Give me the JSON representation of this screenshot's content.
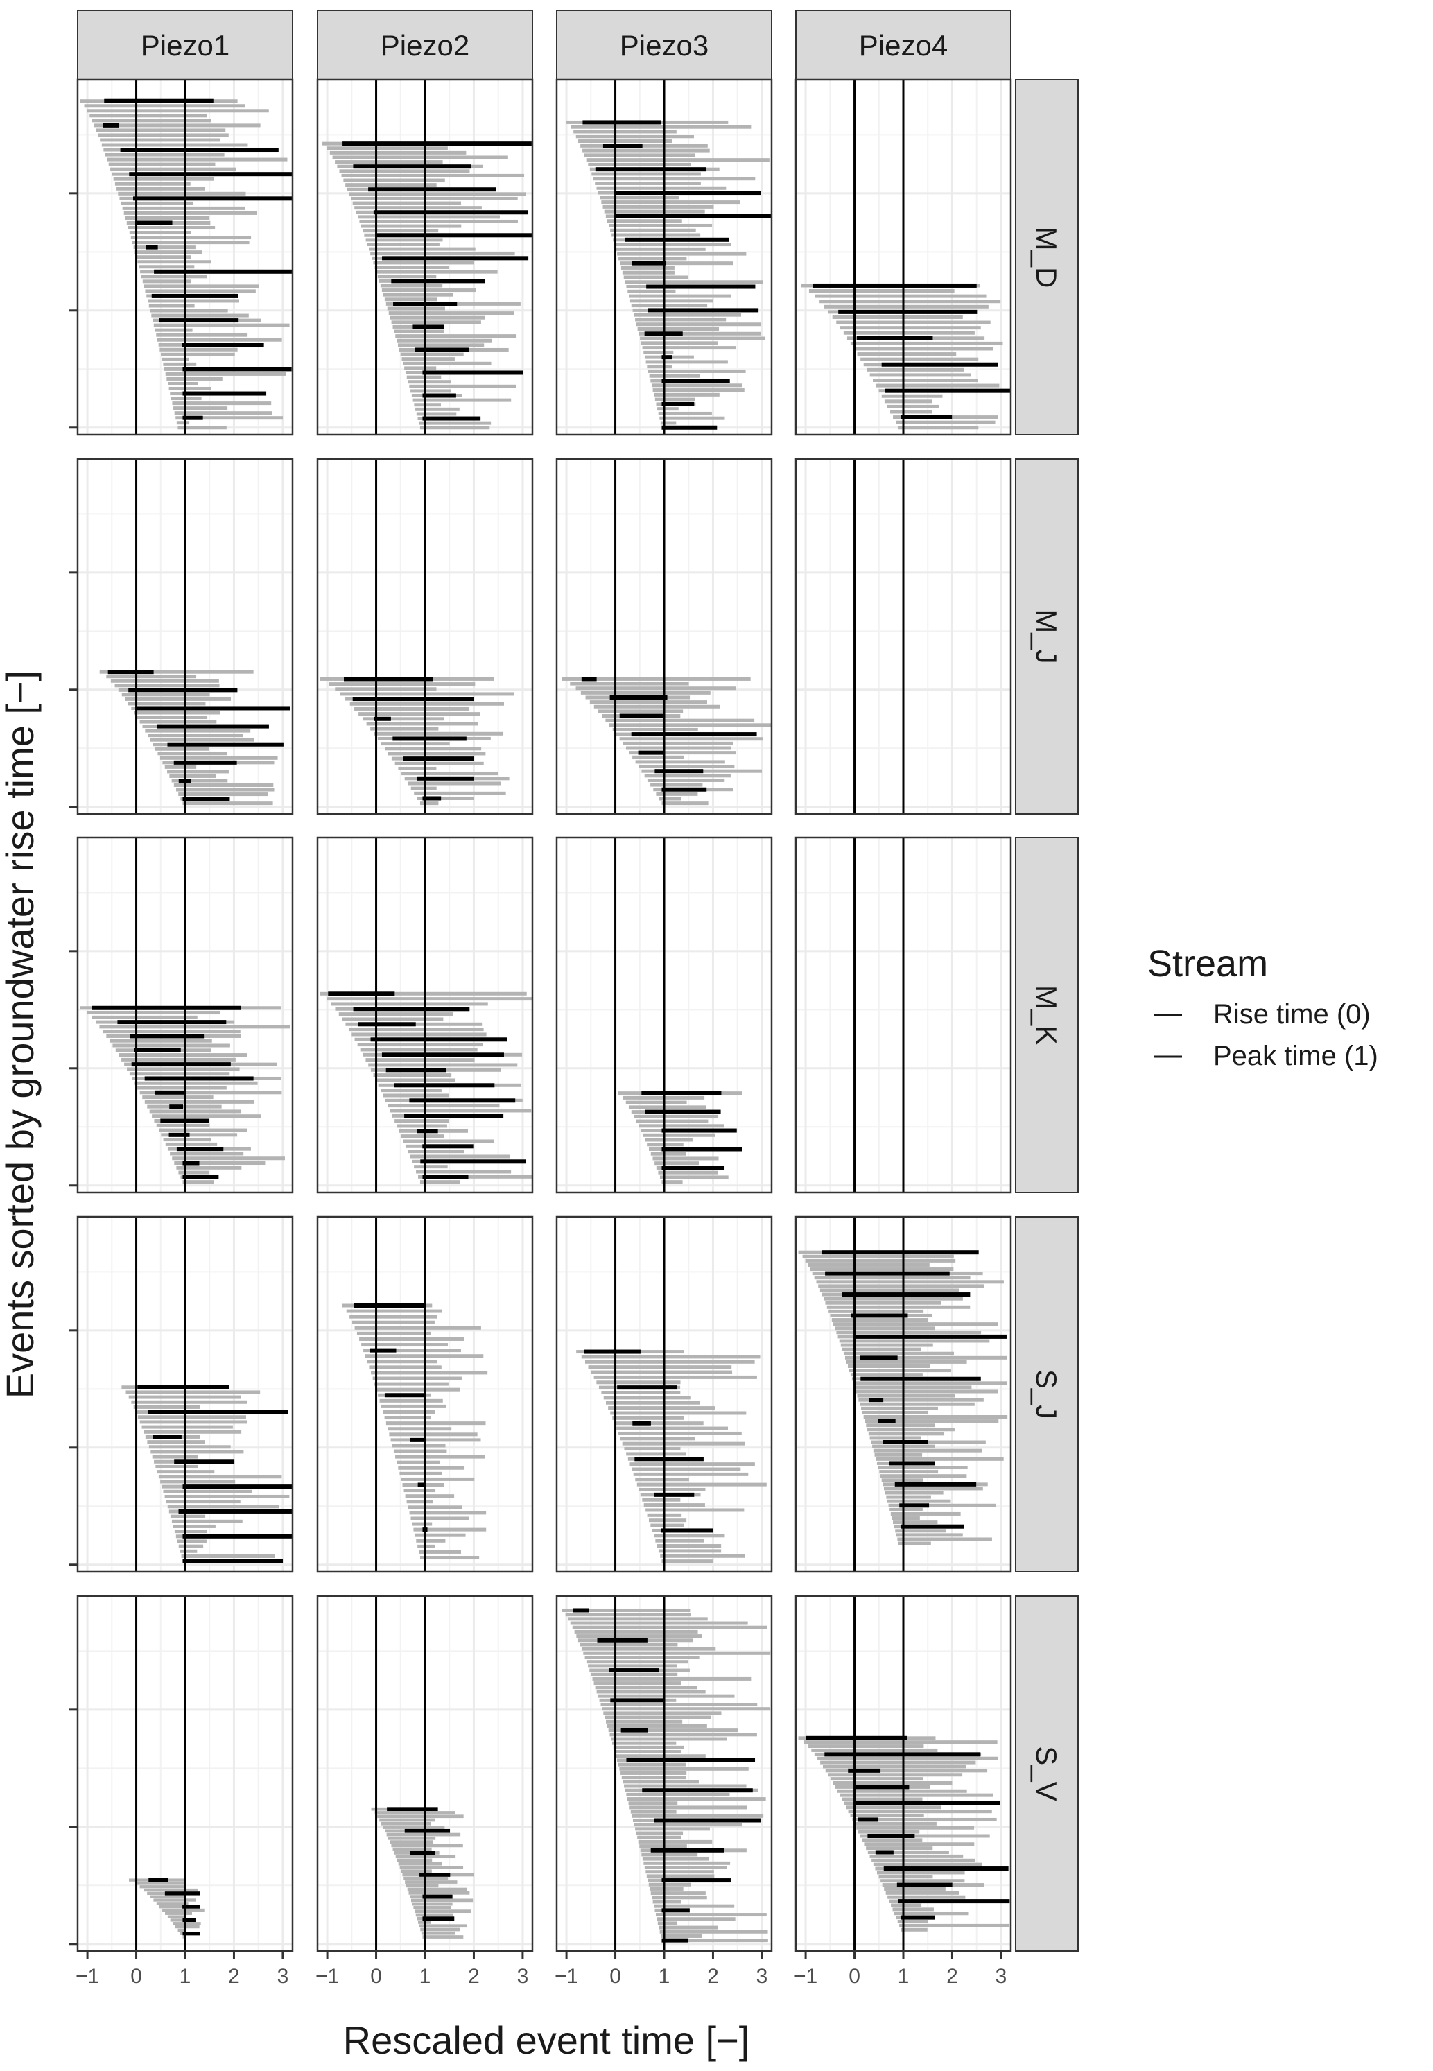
{
  "chart_data": {
    "type": "faceted_horizontal_interval_chart",
    "xlabel": "Rescaled event time  [−]",
    "ylabel": "Events sorted by groundwater rise time [−]",
    "xlim": [
      -1.2,
      3.2
    ],
    "xticks": [
      -1,
      0,
      1,
      2,
      3
    ],
    "x_tick_labels": [
      "−1",
      "0",
      "1",
      "2",
      "3"
    ],
    "vertical_reference_lines": [
      0,
      1
    ],
    "grid": true,
    "columns": [
      "Piezo1",
      "Piezo2",
      "Piezo3",
      "Piezo4"
    ],
    "rows": [
      "M_D",
      "M_J",
      "M_K",
      "S_J",
      "S_V"
    ],
    "legend": {
      "title": "Stream",
      "position": "right",
      "entries": [
        {
          "label": "Rise time (0)",
          "color": "#1a1a1a"
        },
        {
          "label": "Peak time (1)",
          "color": "#1a1a1a"
        }
      ]
    },
    "colors": {
      "groundwater_interval": "#b3b3b3",
      "stream_interval": "#000000",
      "reference_line": "#000000",
      "grid": "#ebebeb",
      "strip": "#d9d9d9"
    },
    "panels": [
      {
        "row": "M_D",
        "col": "Piezo1",
        "n": 68,
        "y_top": 0.94,
        "y_bot": 0.02,
        "start_range": [
          -1.15,
          0.85
        ],
        "gray_range": [
          0.7,
          3.2
        ],
        "black_count": 13,
        "black_max": 3.2
      },
      {
        "row": "M_D",
        "col": "Piezo2",
        "n": 63,
        "y_top": 0.82,
        "y_bot": 0.02,
        "start_range": [
          -1.1,
          0.9
        ],
        "gray_range": [
          0.9,
          3.1
        ],
        "black_count": 14,
        "black_max": 3.2
      },
      {
        "row": "M_D",
        "col": "Piezo3",
        "n": 66,
        "y_top": 0.88,
        "y_bot": 0.02,
        "start_range": [
          -1.0,
          0.95
        ],
        "gray_range": [
          0.8,
          3.2
        ],
        "black_count": 13,
        "black_max": 3.2
      },
      {
        "row": "M_D",
        "col": "Piezo4",
        "n": 28,
        "y_top": 0.42,
        "y_bot": 0.02,
        "start_range": [
          -1.1,
          0.9
        ],
        "gray_range": [
          1.3,
          3.2
        ],
        "black_count": 6,
        "black_max": 3.2
      },
      {
        "row": "M_J",
        "col": "Piezo1",
        "n": 30,
        "y_top": 0.4,
        "y_bot": 0.03,
        "start_range": [
          -0.75,
          0.95
        ],
        "gray_range": [
          0.9,
          3.0
        ],
        "black_count": 8,
        "black_max": 3.2
      },
      {
        "row": "M_J",
        "col": "Piezo2",
        "n": 26,
        "y_top": 0.38,
        "y_bot": 0.03,
        "start_range": [
          -1.15,
          0.9
        ],
        "gray_range": [
          0.9,
          2.9
        ],
        "black_count": 6,
        "black_max": 2.0
      },
      {
        "row": "M_J",
        "col": "Piezo3",
        "n": 28,
        "y_top": 0.38,
        "y_bot": 0.03,
        "start_range": [
          -1.1,
          0.95
        ],
        "gray_range": [
          1.0,
          3.2
        ],
        "black_count": 7,
        "black_max": 3.2
      },
      {
        "row": "M_J",
        "col": "Piezo4",
        "n": 0
      },
      {
        "row": "M_K",
        "col": "Piezo1",
        "n": 38,
        "y_top": 0.52,
        "y_bot": 0.03,
        "start_range": [
          -1.15,
          0.95
        ],
        "gray_range": [
          0.9,
          3.2
        ],
        "black_count": 12,
        "black_max": 2.4
      },
      {
        "row": "M_K",
        "col": "Piezo2",
        "n": 38,
        "y_top": 0.56,
        "y_bot": 0.03,
        "start_range": [
          -1.15,
          0.9
        ],
        "gray_range": [
          0.9,
          3.2
        ],
        "black_count": 11,
        "black_max": 3.2
      },
      {
        "row": "M_K",
        "col": "Piezo3",
        "n": 20,
        "y_top": 0.28,
        "y_bot": 0.03,
        "start_range": [
          0.05,
          0.95
        ],
        "gray_range": [
          1.0,
          2.6
        ],
        "black_count": 5,
        "black_max": 2.6
      },
      {
        "row": "M_K",
        "col": "Piezo4",
        "n": 0
      },
      {
        "row": "S_J",
        "col": "Piezo1",
        "n": 36,
        "y_top": 0.52,
        "y_bot": 0.03,
        "start_range": [
          -0.3,
          0.95
        ],
        "gray_range": [
          0.9,
          3.2
        ],
        "black_count": 8,
        "black_max": 3.2
      },
      {
        "row": "S_J",
        "col": "Piezo2",
        "n": 46,
        "y_top": 0.75,
        "y_bot": 0.04,
        "start_range": [
          -0.7,
          0.9
        ],
        "gray_range": [
          0.9,
          2.3
        ],
        "black_count": 6,
        "black_max": 1.0
      },
      {
        "row": "S_J",
        "col": "Piezo3",
        "n": 42,
        "y_top": 0.62,
        "y_bot": 0.03,
        "start_range": [
          -0.8,
          0.95
        ],
        "gray_range": [
          1.0,
          3.1
        ],
        "black_count": 6,
        "black_max": 2.0
      },
      {
        "row": "S_J",
        "col": "Piezo4",
        "n": 70,
        "y_top": 0.9,
        "y_bot": 0.08,
        "start_range": [
          -1.15,
          0.9
        ],
        "gray_range": [
          1.0,
          3.2
        ],
        "black_count": 14,
        "black_max": 3.2
      },
      {
        "row": "S_V",
        "col": "Piezo1",
        "n": 18,
        "y_top": 0.2,
        "y_bot": 0.04,
        "start_range": [
          -0.15,
          0.95
        ],
        "gray_range": [
          0.9,
          1.4
        ],
        "black_count": 5,
        "black_max": 1.3
      },
      {
        "row": "S_V",
        "col": "Piezo2",
        "n": 36,
        "y_top": 0.4,
        "y_bot": 0.04,
        "start_range": [
          -0.1,
          0.95
        ],
        "gray_range": [
          0.9,
          2.0
        ],
        "black_count": 6,
        "black_max": 1.6
      },
      {
        "row": "S_V",
        "col": "Piezo3",
        "n": 78,
        "y_top": 0.96,
        "y_bot": 0.03,
        "start_range": [
          -1.1,
          0.95
        ],
        "gray_range": [
          0.9,
          3.2
        ],
        "black_count": 12,
        "black_max": 3.2
      },
      {
        "row": "S_V",
        "col": "Piezo4",
        "n": 48,
        "y_top": 0.6,
        "y_bot": 0.06,
        "start_range": [
          -1.15,
          0.95
        ],
        "gray_range": [
          1.0,
          3.2
        ],
        "black_count": 12,
        "black_max": 3.2
      }
    ]
  }
}
